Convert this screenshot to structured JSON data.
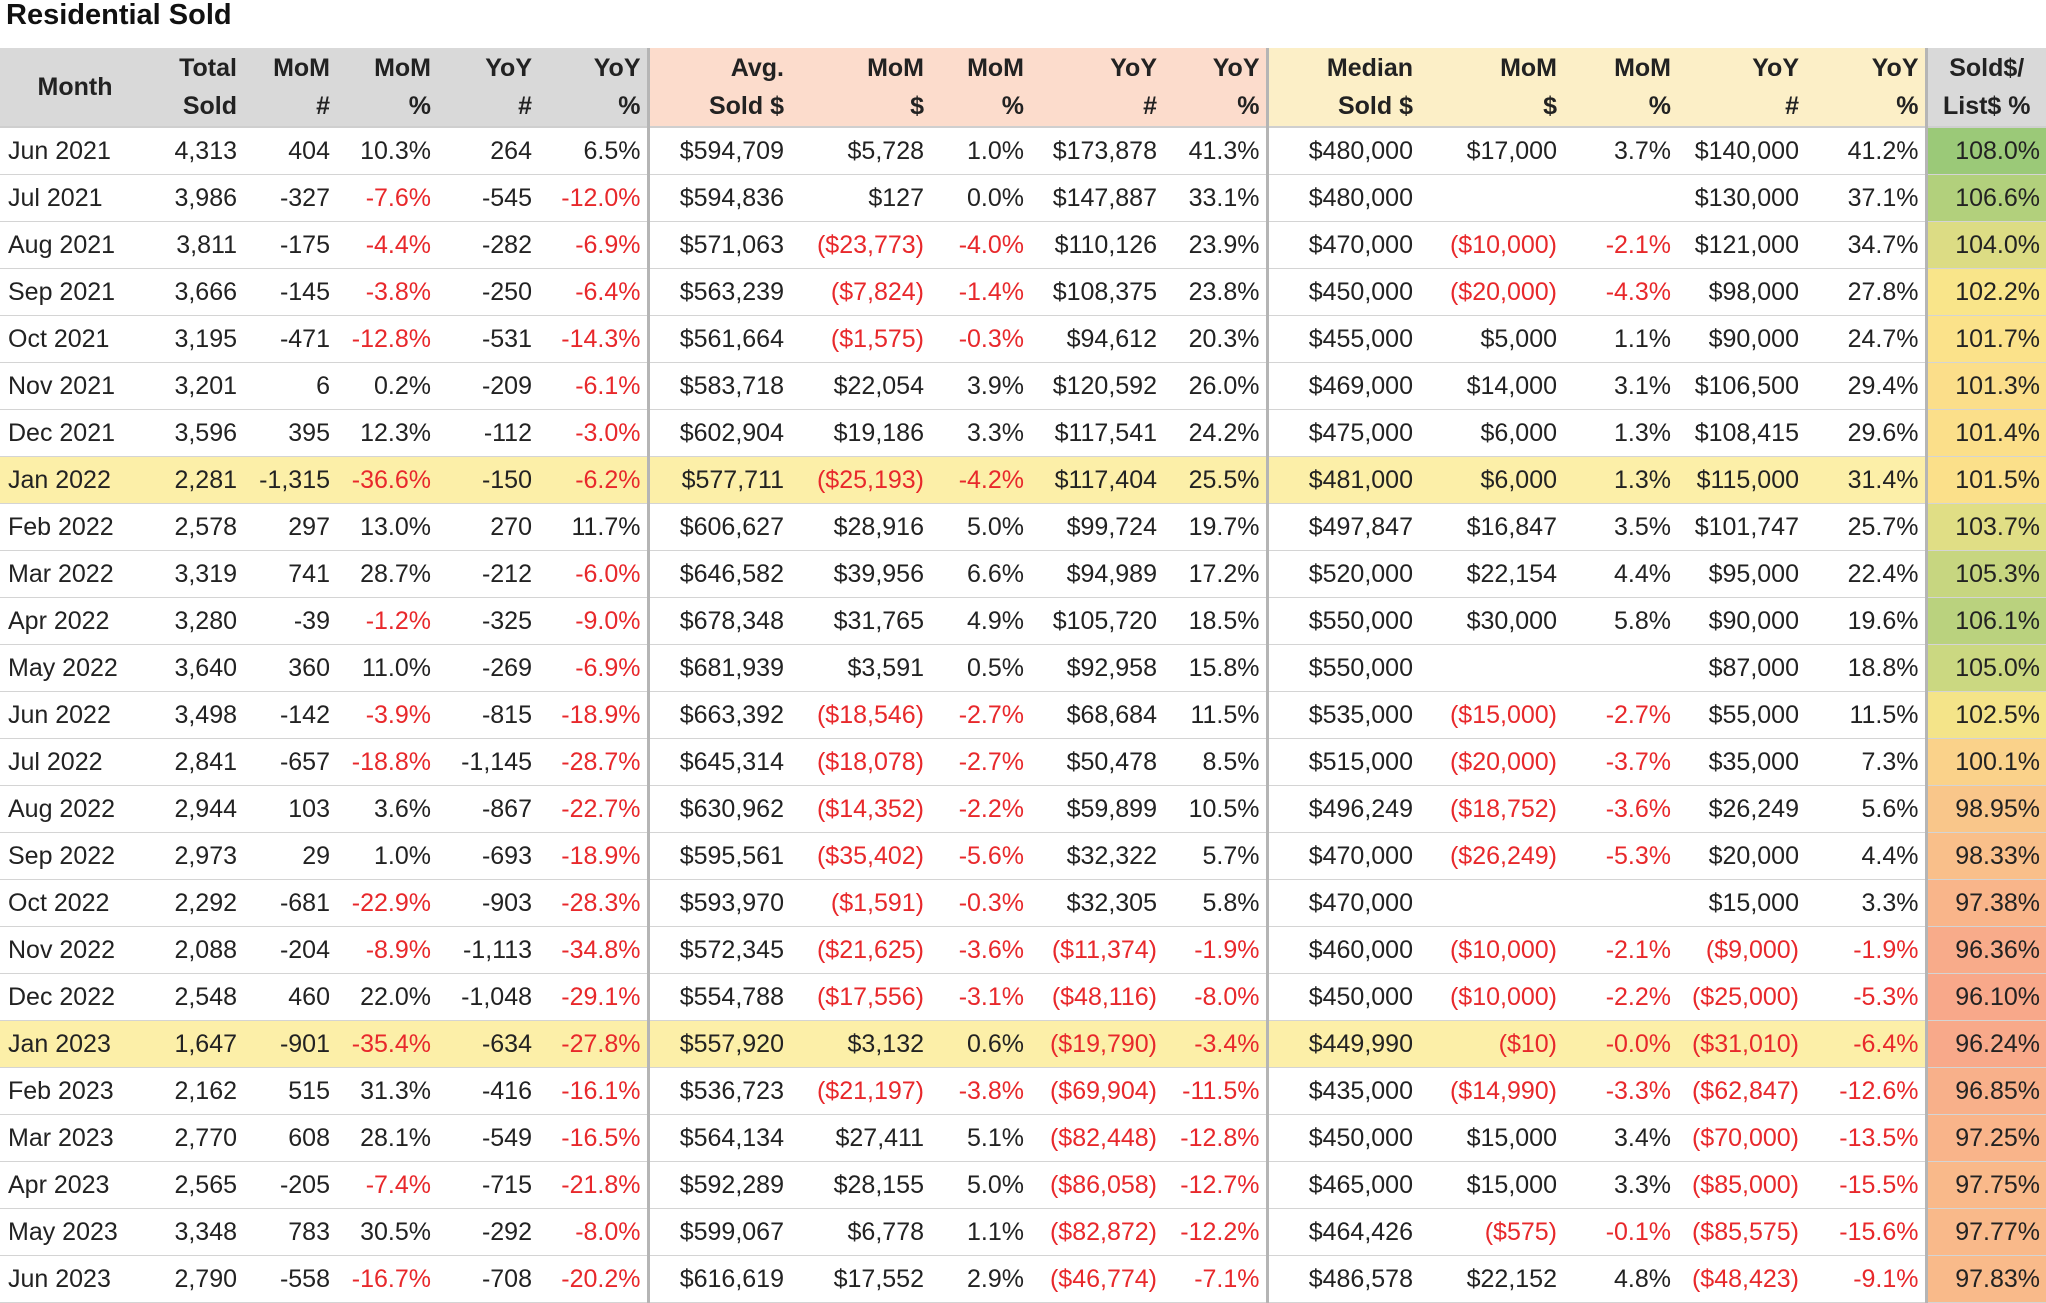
{
  "title": "Residential Sold",
  "headers": [
    {
      "l1": "Month",
      "l2": "",
      "group": "g0"
    },
    {
      "l1": "Total",
      "l2": "Sold",
      "group": "g0"
    },
    {
      "l1": "MoM",
      "l2": "#",
      "group": "g0"
    },
    {
      "l1": "MoM",
      "l2": "%",
      "group": "g0"
    },
    {
      "l1": "YoY",
      "l2": "#",
      "group": "g0"
    },
    {
      "l1": "YoY",
      "l2": "%",
      "group": "g0"
    },
    {
      "l1": "Avg.",
      "l2": "Sold $",
      "group": "g1"
    },
    {
      "l1": "MoM",
      "l2": "$",
      "group": "g1"
    },
    {
      "l1": "MoM",
      "l2": "%",
      "group": "g1"
    },
    {
      "l1": "YoY",
      "l2": "#",
      "group": "g1"
    },
    {
      "l1": "YoY",
      "l2": "%",
      "group": "g1"
    },
    {
      "l1": "Median",
      "l2": "Sold $",
      "group": "g2"
    },
    {
      "l1": "MoM",
      "l2": "$",
      "group": "g2"
    },
    {
      "l1": "MoM",
      "l2": "%",
      "group": "g2"
    },
    {
      "l1": "YoY",
      "l2": "#",
      "group": "g2"
    },
    {
      "l1": "YoY",
      "l2": "%",
      "group": "g2"
    },
    {
      "l1": "Sold$/",
      "l2": "List$ %",
      "group": "g3"
    }
  ],
  "rows": [
    {
      "c": [
        "Jun 2021",
        "4,313",
        "404",
        "10.3%",
        "264",
        "6.5%",
        "$594,709",
        "$5,728",
        "1.0%",
        "$173,878",
        "41.3%",
        "$480,000",
        "$17,000",
        "3.7%",
        "$140,000",
        "41.2%",
        "108.0%"
      ],
      "ratio": 108.0,
      "hl": false
    },
    {
      "c": [
        "Jul 2021",
        "3,986",
        "-327",
        "-7.6%",
        "-545",
        "-12.0%",
        "$594,836",
        "$127",
        "0.0%",
        "$147,887",
        "33.1%",
        "$480,000",
        "",
        "",
        "$130,000",
        "37.1%",
        "106.6%"
      ],
      "ratio": 106.6,
      "hl": false
    },
    {
      "c": [
        "Aug 2021",
        "3,811",
        "-175",
        "-4.4%",
        "-282",
        "-6.9%",
        "$571,063",
        "($23,773)",
        "-4.0%",
        "$110,126",
        "23.9%",
        "$470,000",
        "($10,000)",
        "-2.1%",
        "$121,000",
        "34.7%",
        "104.0%"
      ],
      "ratio": 104.0,
      "hl": false
    },
    {
      "c": [
        "Sep 2021",
        "3,666",
        "-145",
        "-3.8%",
        "-250",
        "-6.4%",
        "$563,239",
        "($7,824)",
        "-1.4%",
        "$108,375",
        "23.8%",
        "$450,000",
        "($20,000)",
        "-4.3%",
        "$98,000",
        "27.8%",
        "102.2%"
      ],
      "ratio": 102.2,
      "hl": false
    },
    {
      "c": [
        "Oct 2021",
        "3,195",
        "-471",
        "-12.8%",
        "-531",
        "-14.3%",
        "$561,664",
        "($1,575)",
        "-0.3%",
        "$94,612",
        "20.3%",
        "$455,000",
        "$5,000",
        "1.1%",
        "$90,000",
        "24.7%",
        "101.7%"
      ],
      "ratio": 101.7,
      "hl": false
    },
    {
      "c": [
        "Nov 2021",
        "3,201",
        "6",
        "0.2%",
        "-209",
        "-6.1%",
        "$583,718",
        "$22,054",
        "3.9%",
        "$120,592",
        "26.0%",
        "$469,000",
        "$14,000",
        "3.1%",
        "$106,500",
        "29.4%",
        "101.3%"
      ],
      "ratio": 101.3,
      "hl": false
    },
    {
      "c": [
        "Dec 2021",
        "3,596",
        "395",
        "12.3%",
        "-112",
        "-3.0%",
        "$602,904",
        "$19,186",
        "3.3%",
        "$117,541",
        "24.2%",
        "$475,000",
        "$6,000",
        "1.3%",
        "$108,415",
        "29.6%",
        "101.4%"
      ],
      "ratio": 101.4,
      "hl": false
    },
    {
      "c": [
        "Jan 2022",
        "2,281",
        "-1,315",
        "-36.6%",
        "-150",
        "-6.2%",
        "$577,711",
        "($25,193)",
        "-4.2%",
        "$117,404",
        "25.5%",
        "$481,000",
        "$6,000",
        "1.3%",
        "$115,000",
        "31.4%",
        "101.5%"
      ],
      "ratio": 101.5,
      "hl": true
    },
    {
      "c": [
        "Feb 2022",
        "2,578",
        "297",
        "13.0%",
        "270",
        "11.7%",
        "$606,627",
        "$28,916",
        "5.0%",
        "$99,724",
        "19.7%",
        "$497,847",
        "$16,847",
        "3.5%",
        "$101,747",
        "25.7%",
        "103.7%"
      ],
      "ratio": 103.7,
      "hl": false
    },
    {
      "c": [
        "Mar 2022",
        "3,319",
        "741",
        "28.7%",
        "-212",
        "-6.0%",
        "$646,582",
        "$39,956",
        "6.6%",
        "$94,989",
        "17.2%",
        "$520,000",
        "$22,154",
        "4.4%",
        "$95,000",
        "22.4%",
        "105.3%"
      ],
      "ratio": 105.3,
      "hl": false
    },
    {
      "c": [
        "Apr 2022",
        "3,280",
        "-39",
        "-1.2%",
        "-325",
        "-9.0%",
        "$678,348",
        "$31,765",
        "4.9%",
        "$105,720",
        "18.5%",
        "$550,000",
        "$30,000",
        "5.8%",
        "$90,000",
        "19.6%",
        "106.1%"
      ],
      "ratio": 106.1,
      "hl": false
    },
    {
      "c": [
        "May 2022",
        "3,640",
        "360",
        "11.0%",
        "-269",
        "-6.9%",
        "$681,939",
        "$3,591",
        "0.5%",
        "$92,958",
        "15.8%",
        "$550,000",
        "",
        "",
        "$87,000",
        "18.8%",
        "105.0%"
      ],
      "ratio": 105.0,
      "hl": false
    },
    {
      "c": [
        "Jun 2022",
        "3,498",
        "-142",
        "-3.9%",
        "-815",
        "-18.9%",
        "$663,392",
        "($18,546)",
        "-2.7%",
        "$68,684",
        "11.5%",
        "$535,000",
        "($15,000)",
        "-2.7%",
        "$55,000",
        "11.5%",
        "102.5%"
      ],
      "ratio": 102.5,
      "hl": false
    },
    {
      "c": [
        "Jul 2022",
        "2,841",
        "-657",
        "-18.8%",
        "-1,145",
        "-28.7%",
        "$645,314",
        "($18,078)",
        "-2.7%",
        "$50,478",
        "8.5%",
        "$515,000",
        "($20,000)",
        "-3.7%",
        "$35,000",
        "7.3%",
        "100.1%"
      ],
      "ratio": 100.1,
      "hl": false
    },
    {
      "c": [
        "Aug 2022",
        "2,944",
        "103",
        "3.6%",
        "-867",
        "-22.7%",
        "$630,962",
        "($14,352)",
        "-2.2%",
        "$59,899",
        "10.5%",
        "$496,249",
        "($18,752)",
        "-3.6%",
        "$26,249",
        "5.6%",
        "98.95%"
      ],
      "ratio": 98.95,
      "hl": false
    },
    {
      "c": [
        "Sep 2022",
        "2,973",
        "29",
        "1.0%",
        "-693",
        "-18.9%",
        "$595,561",
        "($35,402)",
        "-5.6%",
        "$32,322",
        "5.7%",
        "$470,000",
        "($26,249)",
        "-5.3%",
        "$20,000",
        "4.4%",
        "98.33%"
      ],
      "ratio": 98.33,
      "hl": false
    },
    {
      "c": [
        "Oct 2022",
        "2,292",
        "-681",
        "-22.9%",
        "-903",
        "-28.3%",
        "$593,970",
        "($1,591)",
        "-0.3%",
        "$32,305",
        "5.8%",
        "$470,000",
        "",
        "",
        "$15,000",
        "3.3%",
        "97.38%"
      ],
      "ratio": 97.38,
      "hl": false
    },
    {
      "c": [
        "Nov 2022",
        "2,088",
        "-204",
        "-8.9%",
        "-1,113",
        "-34.8%",
        "$572,345",
        "($21,625)",
        "-3.6%",
        "($11,374)",
        "-1.9%",
        "$460,000",
        "($10,000)",
        "-2.1%",
        "($9,000)",
        "-1.9%",
        "96.36%"
      ],
      "ratio": 96.36,
      "hl": false
    },
    {
      "c": [
        "Dec 2022",
        "2,548",
        "460",
        "22.0%",
        "-1,048",
        "-29.1%",
        "$554,788",
        "($17,556)",
        "-3.1%",
        "($48,116)",
        "-8.0%",
        "$450,000",
        "($10,000)",
        "-2.2%",
        "($25,000)",
        "-5.3%",
        "96.10%"
      ],
      "ratio": 96.1,
      "hl": false
    },
    {
      "c": [
        "Jan 2023",
        "1,647",
        "-901",
        "-35.4%",
        "-634",
        "-27.8%",
        "$557,920",
        "$3,132",
        "0.6%",
        "($19,790)",
        "-3.4%",
        "$449,990",
        "($10)",
        "-0.0%",
        "($31,010)",
        "-6.4%",
        "96.24%"
      ],
      "ratio": 96.24,
      "hl": true
    },
    {
      "c": [
        "Feb 2023",
        "2,162",
        "515",
        "31.3%",
        "-416",
        "-16.1%",
        "$536,723",
        "($21,197)",
        "-3.8%",
        "($69,904)",
        "-11.5%",
        "$435,000",
        "($14,990)",
        "-3.3%",
        "($62,847)",
        "-12.6%",
        "96.85%"
      ],
      "ratio": 96.85,
      "hl": false
    },
    {
      "c": [
        "Mar 2023",
        "2,770",
        "608",
        "28.1%",
        "-549",
        "-16.5%",
        "$564,134",
        "$27,411",
        "5.1%",
        "($82,448)",
        "-12.8%",
        "$450,000",
        "$15,000",
        "3.4%",
        "($70,000)",
        "-13.5%",
        "97.25%"
      ],
      "ratio": 97.25,
      "hl": false
    },
    {
      "c": [
        "Apr 2023",
        "2,565",
        "-205",
        "-7.4%",
        "-715",
        "-21.8%",
        "$592,289",
        "$28,155",
        "5.0%",
        "($86,058)",
        "-12.7%",
        "$465,000",
        "$15,000",
        "3.3%",
        "($85,000)",
        "-15.5%",
        "97.75%"
      ],
      "ratio": 97.75,
      "hl": false
    },
    {
      "c": [
        "May 2023",
        "3,348",
        "783",
        "30.5%",
        "-292",
        "-8.0%",
        "$599,067",
        "$6,778",
        "1.1%",
        "($82,872)",
        "-12.2%",
        "$464,426",
        "($575)",
        "-0.1%",
        "($85,575)",
        "-15.6%",
        "97.77%"
      ],
      "ratio": 97.77,
      "hl": false
    },
    {
      "c": [
        "Jun 2023",
        "2,790",
        "-558",
        "-16.7%",
        "-708",
        "-20.2%",
        "$616,619",
        "$17,552",
        "2.9%",
        "($46,774)",
        "-7.1%",
        "$486,578",
        "$22,152",
        "4.8%",
        "($48,423)",
        "-9.1%",
        "97.83%"
      ],
      "ratio": 97.83,
      "hl": false
    }
  ],
  "negative_color": "#e8282b",
  "highlight_row_color": "#fcefa8",
  "ratio_scale": {
    "min_color": "#f8a88a",
    "mid_color": "#fbe68a",
    "max_color": "#9bc978"
  }
}
